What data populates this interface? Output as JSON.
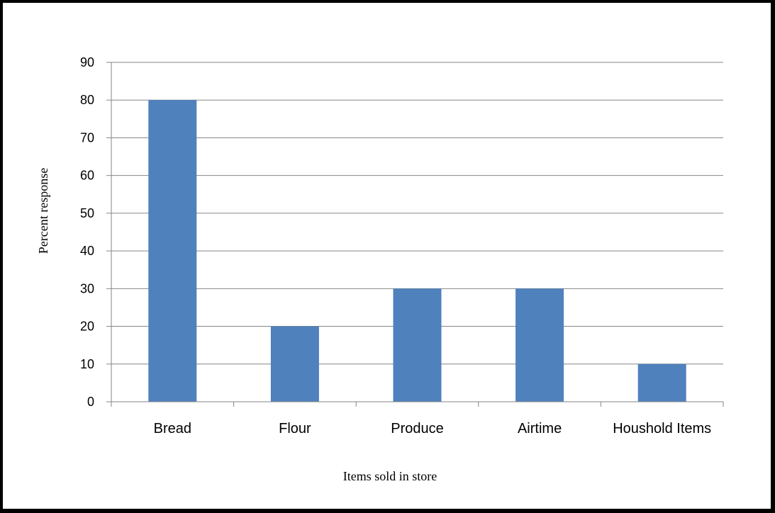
{
  "chart_data": {
    "type": "bar",
    "title": "",
    "xlabel": "Items sold in store",
    "ylabel": "Percent response",
    "categories": [
      "Bread",
      "Flour",
      "Produce",
      "Airtime",
      "Houshold Items"
    ],
    "values": [
      80,
      20,
      30,
      30,
      10
    ],
    "ylim": [
      0,
      90
    ],
    "yticks": [
      0,
      10,
      20,
      30,
      40,
      50,
      60,
      70,
      80,
      90
    ],
    "grid": true,
    "legend": "none",
    "bar_color": "#4F81BD",
    "grid_color": "#868686"
  }
}
